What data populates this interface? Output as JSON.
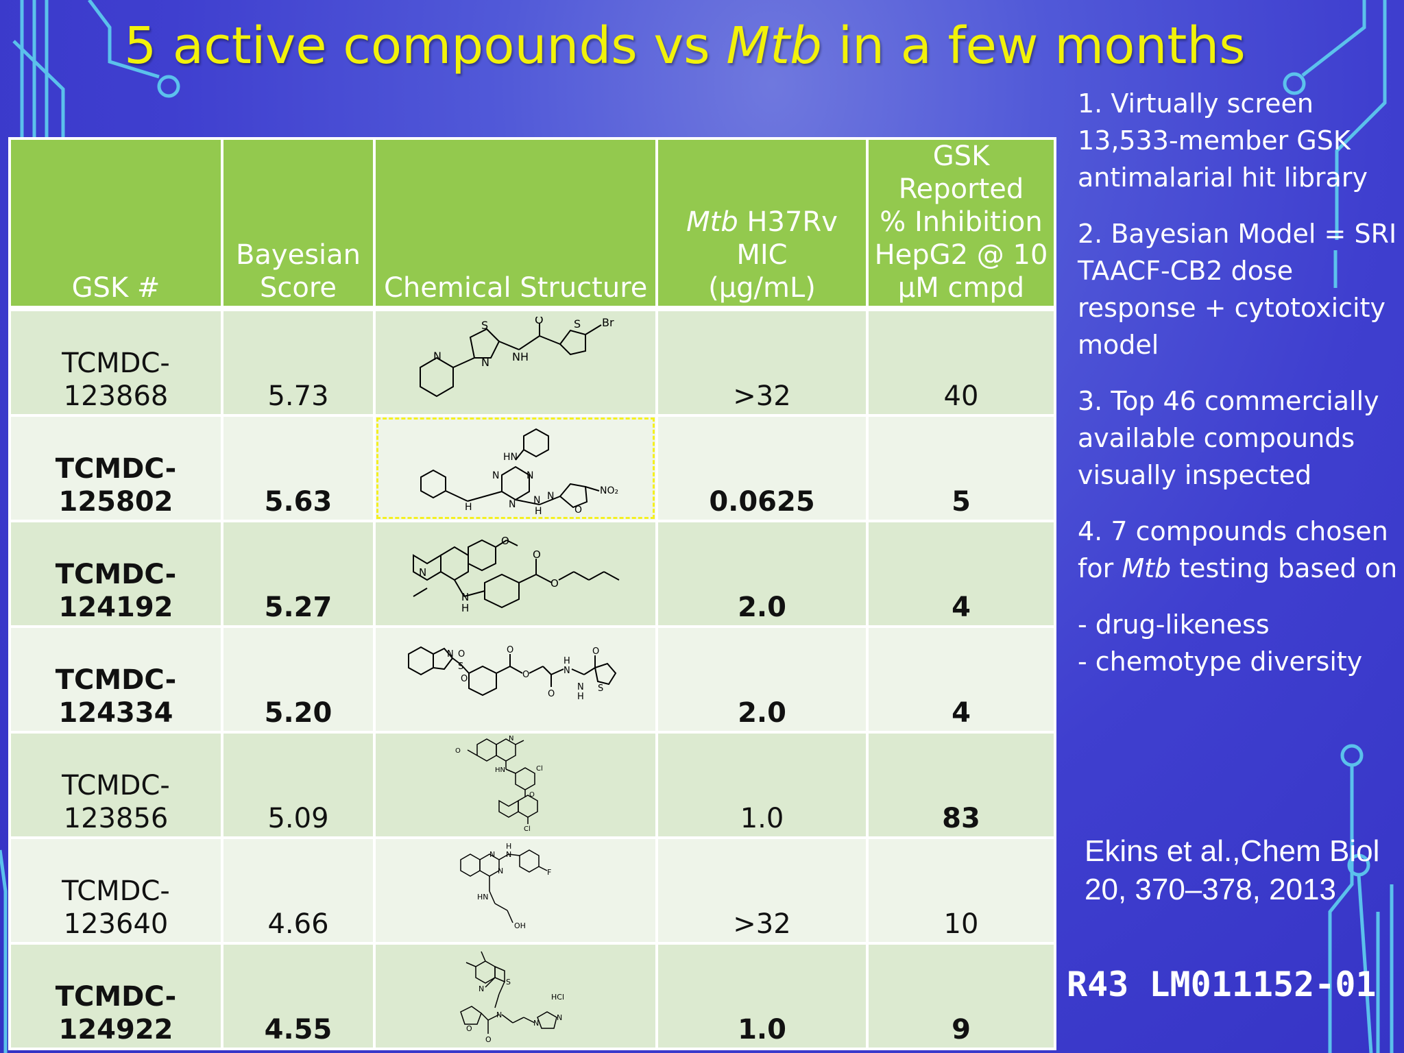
{
  "title": {
    "part1": "5 active compounds vs ",
    "italic": "Mtb",
    "part2": " in a few months"
  },
  "table": {
    "headers": {
      "gsk": "GSK #",
      "bayes_l1": "Bayesian",
      "bayes_l2": "Score",
      "structure": "Chemical Structure",
      "mic_italic": "Mtb",
      "mic_l1_rest": " H37Rv",
      "mic_l2": "MIC",
      "mic_l3": "(µg/mL)",
      "inh_l1": "GSK",
      "inh_l2": "Reported",
      "inh_l3": "% Inhibition",
      "inh_l4": "HepG2 @ 10",
      "inh_l5": "µM cmpd"
    },
    "rows": [
      {
        "id_l1": "TCMDC-",
        "id_l2": "123868",
        "score": "5.73",
        "mic": ">32",
        "inhibition": "40"
      },
      {
        "id_l1": "TCMDC-",
        "id_l2": "125802",
        "score": "5.63",
        "mic": "0.0625",
        "inhibition": "5"
      },
      {
        "id_l1": "TCMDC-",
        "id_l2": "124192",
        "score": "5.27",
        "mic": "2.0",
        "inhibition": "4"
      },
      {
        "id_l1": "TCMDC-",
        "id_l2": "124334",
        "score": "5.20",
        "mic": "2.0",
        "inhibition": "4"
      },
      {
        "id_l1": "TCMDC-",
        "id_l2": "123856",
        "score": "5.09",
        "mic": "1.0",
        "inhibition": "83"
      },
      {
        "id_l1": "TCMDC-",
        "id_l2": "123640",
        "score": "4.66",
        "mic": ">32",
        "inhibition": "10"
      },
      {
        "id_l1": "TCMDC-",
        "id_l2": "124922",
        "score": "4.55",
        "mic": "1.0",
        "inhibition": "9"
      }
    ],
    "structure_atoms": {
      "s1": {
        "O": "O",
        "S1": "S",
        "S2": "S",
        "Br": "Br",
        "N1": "N",
        "N2": "N",
        "NH": "NH"
      },
      "s2": {
        "HN": "HN",
        "N1": "N",
        "N2": "N",
        "N3": "N",
        "H1": "H",
        "H2": "H",
        "N4": "N",
        "N5": "N",
        "O": "O",
        "NO2": "NO₂"
      },
      "s3": {
        "N": "N",
        "NH": "N",
        "H": "H",
        "O1": "O",
        "O2": "O",
        "O3": "O"
      },
      "s4": {
        "N": "N",
        "S1": "S",
        "O1": "O",
        "O2": "O",
        "O3": "O",
        "O4": "O",
        "O5": "O",
        "H1": "H",
        "H2": "H",
        "N1": "N",
        "N2": "N",
        "S2": "S"
      },
      "s5": {
        "O": "O",
        "N": "N",
        "HN": "HN",
        "Cl1": "Cl",
        "O2": "O",
        "Cl2": "Cl"
      },
      "s6": {
        "N1": "N",
        "N2": "N",
        "H": "H",
        "N3": "N",
        "F": "F",
        "HN": "HN",
        "OH": "OH"
      },
      "s7": {
        "S": "S",
        "N1": "N",
        "N2": "N",
        "O1": "O",
        "O2": "O",
        "N3": "N",
        "N4": "N",
        "HCl": "HCl"
      }
    }
  },
  "steps": [
    {
      "text": "1. Virtually screen 13,533-member GSK antimalarial hit library"
    },
    {
      "text": "2. Bayesian Model = SRI TAACF-CB2 dose response + cytotoxicity model"
    },
    {
      "text": "3. Top 46 commercially available compounds visually inspected"
    },
    {
      "pre": "4. 7 compounds chosen for ",
      "italic": "Mtb",
      "post": " testing based on"
    },
    {
      "line1": "- drug-likeness",
      "line2": "- chemotype diversity"
    }
  ],
  "citation": "Ekins et al.,Chem Biol 20, 370–378, 2013",
  "grant": "R43 LM011152-01",
  "colors": {
    "title": "#f2f20a",
    "header_bg": "#93c94e",
    "row_odd": "#dcead0",
    "row_even": "#eef4e9",
    "mic_highlight": "#1c7a3d",
    "inhibition_highlight": "#e0141c",
    "circuit_lines": "#5fd0ef"
  }
}
